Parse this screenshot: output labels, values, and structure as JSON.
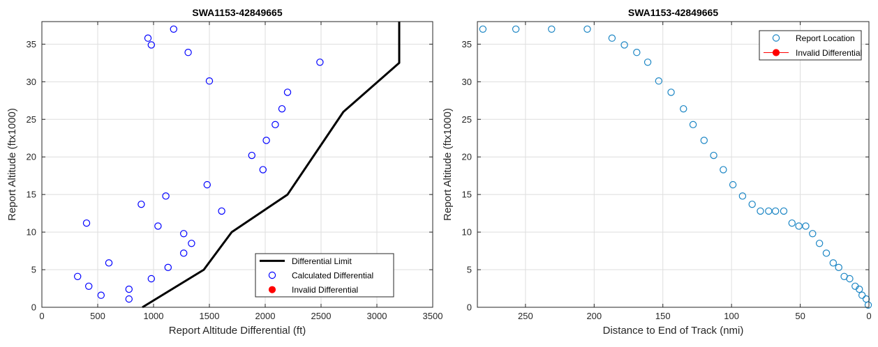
{
  "chart_data": [
    {
      "type": "line",
      "title": "SWA1153-42849665",
      "xlabel": "Report Altitude Differential (ft)",
      "ylabel": "Report Altitude (ftx1000)",
      "xlim": [
        0,
        3500
      ],
      "ylim": [
        0,
        38
      ],
      "x_ticks": [
        0,
        500,
        1000,
        1500,
        2000,
        2500,
        3000,
        3500
      ],
      "y_ticks": [
        0,
        5,
        10,
        15,
        20,
        25,
        30,
        35
      ],
      "grid": true,
      "legend_position": "bottom-right",
      "series": [
        {
          "name": "Differential Limit",
          "kind": "line",
          "color": "#000000",
          "points": [
            [
              900,
              0
            ],
            [
              1450,
              5
            ],
            [
              1700,
              10
            ],
            [
              2200,
              15
            ],
            [
              2700,
              26
            ],
            [
              3200,
              32.5
            ],
            [
              3200,
              38
            ]
          ]
        },
        {
          "name": "Calculated Differential",
          "kind": "scatter",
          "color": "#0000ff",
          "points": [
            [
              950,
              35.8
            ],
            [
              1180,
              37
            ],
            [
              980,
              34.9
            ],
            [
              1310,
              33.9
            ],
            [
              2490,
              32.6
            ],
            [
              1500,
              30.1
            ],
            [
              2200,
              28.6
            ],
            [
              2150,
              26.4
            ],
            [
              2090,
              24.3
            ],
            [
              2010,
              22.2
            ],
            [
              1880,
              20.2
            ],
            [
              1980,
              18.3
            ],
            [
              1480,
              16.3
            ],
            [
              1110,
              14.8
            ],
            [
              890,
              13.7
            ],
            [
              1610,
              12.8
            ],
            [
              400,
              11.2
            ],
            [
              1040,
              10.8
            ],
            [
              1270,
              9.8
            ],
            [
              1340,
              8.5
            ],
            [
              1270,
              7.2
            ],
            [
              600,
              5.9
            ],
            [
              1130,
              5.3
            ],
            [
              320,
              4.1
            ],
            [
              980,
              3.8
            ],
            [
              420,
              2.8
            ],
            [
              780,
              2.4
            ],
            [
              530,
              1.6
            ],
            [
              780,
              1.1
            ]
          ]
        },
        {
          "name": "Invalid Differential",
          "kind": "scatter",
          "color": "#ff0000",
          "points": []
        }
      ]
    },
    {
      "type": "scatter",
      "title": "SWA1153-42849665",
      "xlabel": "Distance to End of Track (nmi)",
      "ylabel": "Report Altitude (ftx1000)",
      "xlim": [
        285,
        0
      ],
      "ylim": [
        0,
        38
      ],
      "x_reversed": true,
      "x_ticks": [
        250,
        200,
        150,
        100,
        50,
        0
      ],
      "y_ticks": [
        0,
        5,
        10,
        15,
        20,
        25,
        30,
        35
      ],
      "grid": true,
      "legend_position": "top-right",
      "series": [
        {
          "name": "Report Location",
          "kind": "scatter",
          "color": "#1a85c4",
          "points": [
            [
              281,
              37
            ],
            [
              257,
              37
            ],
            [
              231,
              37
            ],
            [
              205,
              37
            ],
            [
              187,
              35.8
            ],
            [
              178,
              34.9
            ],
            [
              169,
              33.9
            ],
            [
              161,
              32.6
            ],
            [
              153,
              30.1
            ],
            [
              144,
              28.6
            ],
            [
              135,
              26.4
            ],
            [
              128,
              24.3
            ],
            [
              120,
              22.2
            ],
            [
              113,
              20.2
            ],
            [
              106,
              18.3
            ],
            [
              99,
              16.3
            ],
            [
              92,
              14.8
            ],
            [
              85,
              13.7
            ],
            [
              79,
              12.8
            ],
            [
              73,
              12.8
            ],
            [
              68,
              12.8
            ],
            [
              62,
              12.8
            ],
            [
              56,
              11.2
            ],
            [
              51,
              10.8
            ],
            [
              46,
              10.8
            ],
            [
              41,
              9.8
            ],
            [
              36,
              8.5
            ],
            [
              31,
              7.2
            ],
            [
              26,
              5.9
            ],
            [
              22,
              5.3
            ],
            [
              18,
              4.1
            ],
            [
              14,
              3.8
            ],
            [
              10,
              2.8
            ],
            [
              7,
              2.4
            ],
            [
              5,
              1.6
            ],
            [
              2,
              1.1
            ],
            [
              0.5,
              0.3
            ]
          ]
        },
        {
          "name": "Invalid Differential",
          "kind": "line-marker",
          "color": "#ff0000",
          "points": []
        }
      ]
    }
  ]
}
